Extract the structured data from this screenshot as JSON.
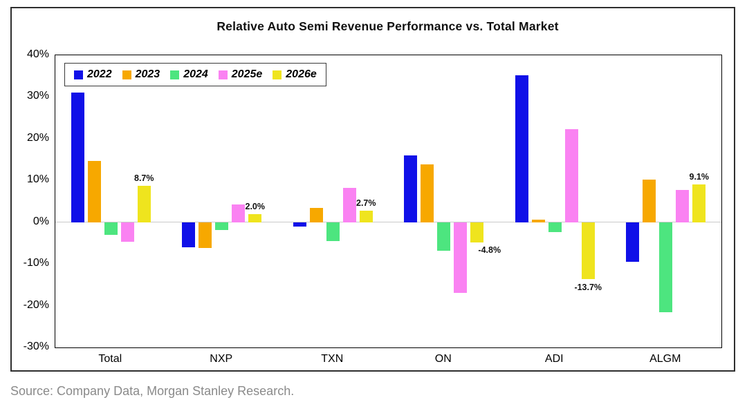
{
  "title": "Relative Auto Semi Revenue Performance vs. Total Market",
  "source": "Source: Company Data, Morgan Stanley Research.",
  "chart_data": {
    "type": "bar",
    "title": "Relative Auto Semi Revenue Performance vs. Total Market",
    "categories": [
      "Total",
      "NXP",
      "TXN",
      "ON",
      "ADI",
      "ALGM"
    ],
    "series": [
      {
        "name": "2022",
        "color": "#1010e8",
        "values": [
          31.0,
          -6.0,
          -1.0,
          16.0,
          35.2,
          -9.5
        ]
      },
      {
        "name": "2023",
        "color": "#f7a800",
        "values": [
          14.7,
          -6.2,
          3.4,
          13.8,
          0.6,
          10.2
        ]
      },
      {
        "name": "2024",
        "color": "#4de57f",
        "values": [
          -3.0,
          -1.8,
          -4.5,
          -6.8,
          -2.4,
          -21.5
        ]
      },
      {
        "name": "2025e",
        "color": "#fa82f2",
        "values": [
          -4.7,
          4.3,
          8.3,
          -17.0,
          22.3,
          7.8
        ]
      },
      {
        "name": "2026e",
        "color": "#efe41e",
        "values": [
          8.7,
          2.0,
          2.7,
          -4.8,
          -13.7,
          9.1
        ],
        "data_labels": [
          "8.7%",
          "2.0%",
          "2.7%",
          "-4.8%",
          "-13.7%",
          "9.1%"
        ]
      }
    ],
    "ylim": [
      -30,
      40
    ],
    "ytick_labels": [
      "40%",
      "30%",
      "20%",
      "10%",
      "0%",
      "-10%",
      "-20%",
      "-30%"
    ],
    "grid": "zero-line-only",
    "legend_position": "top-left-inside-plot",
    "legend_entries": [
      "2022",
      "2023",
      "2024",
      "2025e",
      "2026e"
    ]
  }
}
